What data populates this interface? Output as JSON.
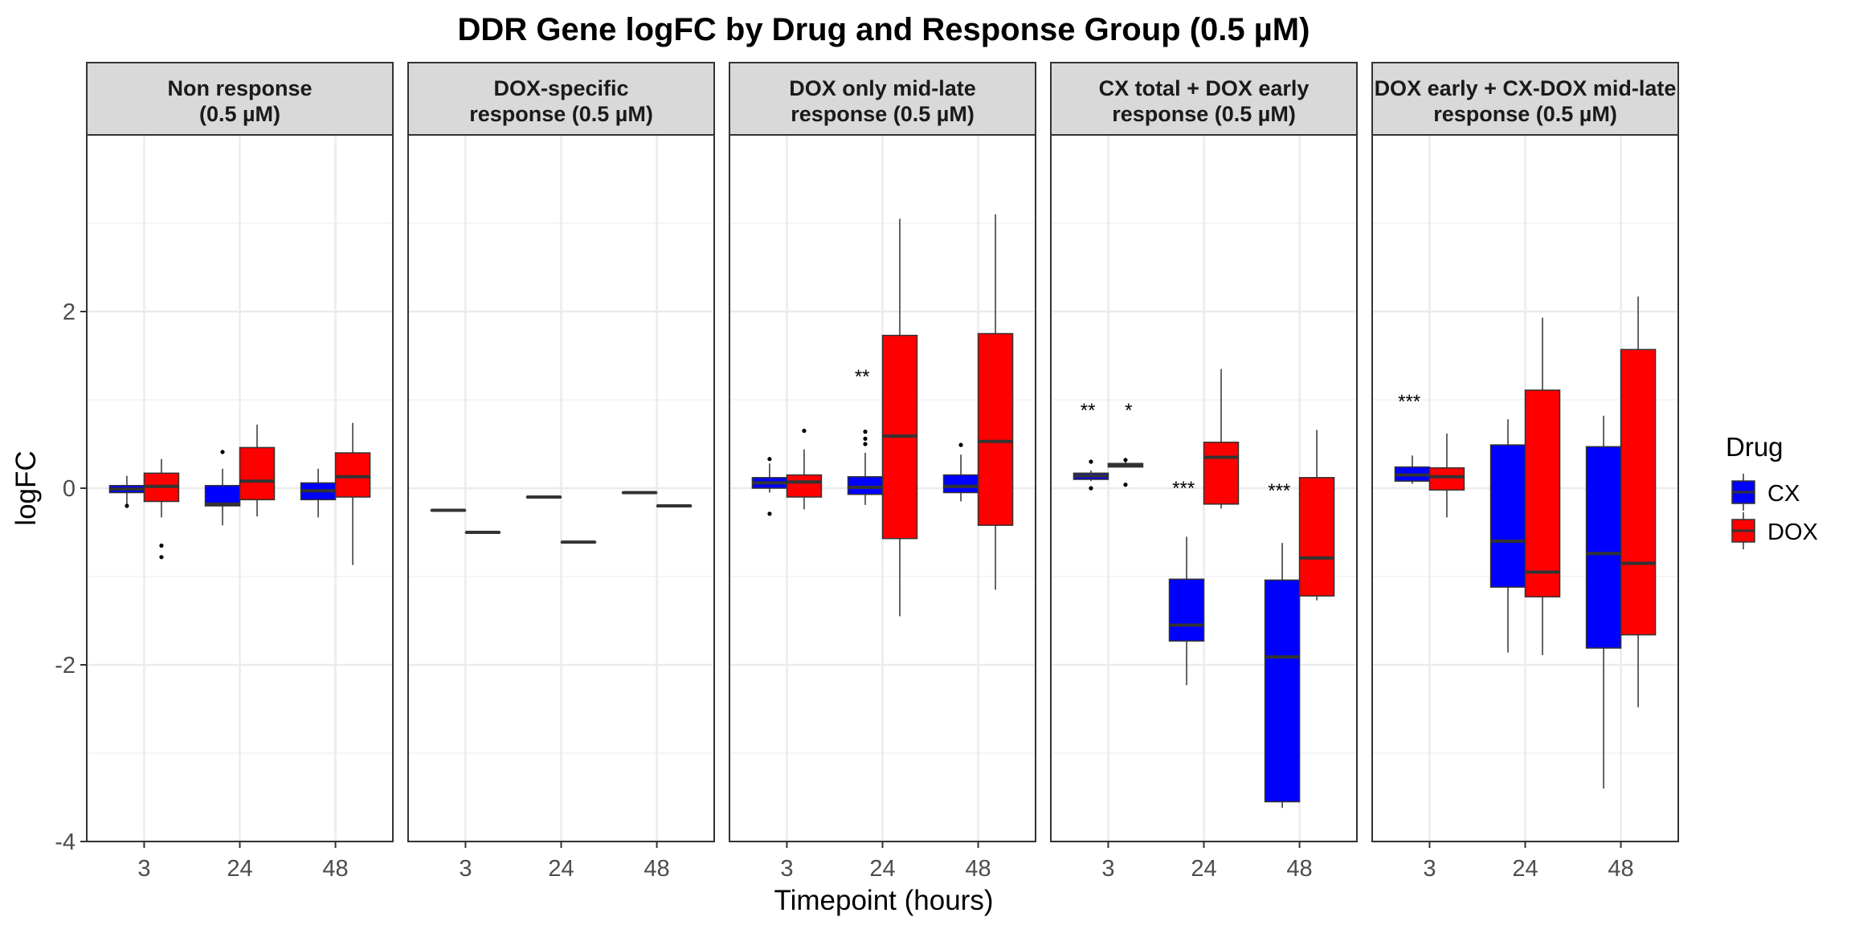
{
  "chart_data": {
    "type": "box",
    "title": "DDR Gene logFC by Drug and Response Group (0.5 µM)",
    "xlabel": "Timepoint (hours)",
    "ylabel": "logFC",
    "ylim": [
      -4,
      4
    ],
    "yticks": [
      "-4",
      "-2",
      "0",
      "2"
    ],
    "categories": [
      "3",
      "24",
      "48"
    ],
    "grid": true,
    "legend": {
      "title": "Drug",
      "position": "right",
      "entries": [
        {
          "name": "CX",
          "color": "#0000FF"
        },
        {
          "name": "DOX",
          "color": "#FF0000"
        }
      ]
    },
    "panels": [
      {
        "strip": [
          "Non response",
          "(0.5 µM)"
        ],
        "boxes": [
          {
            "x": "3",
            "drug": "CX",
            "lower": -0.18,
            "q1": -0.05,
            "median": -0.01,
            "q3": 0.03,
            "upper": 0.14,
            "outliers": [
              -0.2
            ]
          },
          {
            "x": "3",
            "drug": "DOX",
            "lower": -0.33,
            "q1": -0.15,
            "median": 0.02,
            "q3": 0.17,
            "upper": 0.33,
            "outliers": [
              -0.65,
              -0.78
            ]
          },
          {
            "x": "24",
            "drug": "CX",
            "lower": -0.42,
            "q1": -0.2,
            "median": -0.18,
            "q3": 0.03,
            "upper": 0.22,
            "outliers": [
              0.41
            ]
          },
          {
            "x": "24",
            "drug": "DOX",
            "lower": -0.32,
            "q1": -0.13,
            "median": 0.08,
            "q3": 0.46,
            "upper": 0.72,
            "outliers": []
          },
          {
            "x": "48",
            "drug": "CX",
            "lower": -0.33,
            "q1": -0.13,
            "median": -0.03,
            "q3": 0.06,
            "upper": 0.22,
            "outliers": []
          },
          {
            "x": "48",
            "drug": "DOX",
            "lower": -0.87,
            "q1": -0.1,
            "median": 0.13,
            "q3": 0.4,
            "upper": 0.74,
            "outliers": []
          }
        ],
        "annotations": []
      },
      {
        "strip": [
          "DOX-specific",
          "response (0.5 µM)"
        ],
        "boxes": [
          {
            "x": "3",
            "drug": "CX",
            "lower": -0.25,
            "q1": -0.25,
            "median": -0.25,
            "q3": -0.25,
            "upper": -0.25,
            "outliers": []
          },
          {
            "x": "3",
            "drug": "DOX",
            "lower": -0.5,
            "q1": -0.5,
            "median": -0.5,
            "q3": -0.5,
            "upper": -0.5,
            "outliers": []
          },
          {
            "x": "24",
            "drug": "CX",
            "lower": -0.1,
            "q1": -0.1,
            "median": -0.1,
            "q3": -0.1,
            "upper": -0.1,
            "outliers": []
          },
          {
            "x": "24",
            "drug": "DOX",
            "lower": -0.61,
            "q1": -0.61,
            "median": -0.61,
            "q3": -0.61,
            "upper": -0.61,
            "outliers": []
          },
          {
            "x": "48",
            "drug": "CX",
            "lower": -0.05,
            "q1": -0.05,
            "median": -0.05,
            "q3": -0.05,
            "upper": -0.05,
            "outliers": []
          },
          {
            "x": "48",
            "drug": "DOX",
            "lower": -0.2,
            "q1": -0.2,
            "median": -0.2,
            "q3": -0.2,
            "upper": -0.2,
            "outliers": []
          }
        ],
        "annotations": []
      },
      {
        "strip": [
          "DOX only mid-late",
          "response (0.5 µM)"
        ],
        "boxes": [
          {
            "x": "3",
            "drug": "CX",
            "lower": -0.05,
            "q1": 0.0,
            "median": 0.06,
            "q3": 0.12,
            "upper": 0.28,
            "outliers": [
              0.33,
              -0.29
            ]
          },
          {
            "x": "3",
            "drug": "DOX",
            "lower": -0.24,
            "q1": -0.1,
            "median": 0.07,
            "q3": 0.15,
            "upper": 0.44,
            "outliers": [
              0.65
            ]
          },
          {
            "x": "24",
            "drug": "CX",
            "lower": -0.19,
            "q1": -0.07,
            "median": 0.01,
            "q3": 0.13,
            "upper": 0.4,
            "outliers": [
              0.5,
              0.56,
              0.64
            ]
          },
          {
            "x": "24",
            "drug": "DOX",
            "lower": -1.45,
            "q1": -0.57,
            "median": 0.59,
            "q3": 1.73,
            "upper": 3.05,
            "outliers": []
          },
          {
            "x": "48",
            "drug": "CX",
            "lower": -0.15,
            "q1": -0.05,
            "median": 0.02,
            "q3": 0.15,
            "upper": 0.38,
            "outliers": [
              0.49
            ]
          },
          {
            "x": "48",
            "drug": "DOX",
            "lower": -1.15,
            "q1": -0.42,
            "median": 0.53,
            "q3": 1.75,
            "upper": 3.1,
            "outliers": []
          }
        ],
        "annotations": [
          {
            "x": "24",
            "y": 1.28,
            "text": "**"
          }
        ]
      },
      {
        "strip": [
          "CX total + DOX early",
          "response (0.5 µM)"
        ],
        "boxes": [
          {
            "x": "3",
            "drug": "CX",
            "lower": 0.08,
            "q1": 0.1,
            "median": 0.14,
            "q3": 0.17,
            "upper": 0.2,
            "outliers": [
              0.3,
              0.0
            ]
          },
          {
            "x": "3",
            "drug": "DOX",
            "lower": 0.24,
            "q1": 0.24,
            "median": 0.26,
            "q3": 0.28,
            "upper": 0.3,
            "outliers": [
              0.32,
              0.04
            ]
          },
          {
            "x": "24",
            "drug": "CX",
            "lower": -2.23,
            "q1": -1.73,
            "median": -1.55,
            "q3": -1.03,
            "upper": -0.55,
            "outliers": []
          },
          {
            "x": "24",
            "drug": "DOX",
            "lower": -0.23,
            "q1": -0.18,
            "median": 0.35,
            "q3": 0.52,
            "upper": 1.35,
            "outliers": []
          },
          {
            "x": "48",
            "drug": "CX",
            "lower": -3.62,
            "q1": -3.55,
            "median": -1.91,
            "q3": -1.04,
            "upper": -0.62,
            "outliers": []
          },
          {
            "x": "48",
            "drug": "DOX",
            "lower": -1.27,
            "q1": -1.22,
            "median": -0.79,
            "q3": 0.12,
            "upper": 0.66,
            "outliers": []
          }
        ],
        "annotations": [
          {
            "x": "3",
            "offset": -0.25,
            "y": 0.9,
            "text": "**"
          },
          {
            "x": "3",
            "offset": 0.25,
            "y": 0.9,
            "text": "*"
          },
          {
            "x": "24",
            "y": 0.02,
            "text": "***"
          },
          {
            "x": "48",
            "y": -0.01,
            "text": "***"
          }
        ]
      },
      {
        "strip": [
          "DOX early + CX-DOX mid-late",
          "response (0.5 µM)"
        ],
        "boxes": [
          {
            "x": "3",
            "drug": "CX",
            "lower": 0.05,
            "q1": 0.08,
            "median": 0.15,
            "q3": 0.24,
            "upper": 0.37,
            "outliers": []
          },
          {
            "x": "3",
            "drug": "DOX",
            "lower": -0.33,
            "q1": -0.02,
            "median": 0.13,
            "q3": 0.23,
            "upper": 0.62,
            "outliers": []
          },
          {
            "x": "24",
            "drug": "CX",
            "lower": -1.86,
            "q1": -1.12,
            "median": -0.6,
            "q3": 0.49,
            "upper": 0.78,
            "outliers": []
          },
          {
            "x": "24",
            "drug": "DOX",
            "lower": -1.89,
            "q1": -1.23,
            "median": -0.95,
            "q3": 1.11,
            "upper": 1.93,
            "outliers": []
          },
          {
            "x": "48",
            "drug": "CX",
            "lower": -3.4,
            "q1": -1.81,
            "median": -0.74,
            "q3": 0.47,
            "upper": 0.82,
            "outliers": []
          },
          {
            "x": "48",
            "drug": "DOX",
            "lower": -2.48,
            "q1": -1.66,
            "median": -0.85,
            "q3": 1.57,
            "upper": 2.17,
            "outliers": []
          }
        ],
        "annotations": [
          {
            "x": "3",
            "y": 1.0,
            "text": "***"
          }
        ]
      }
    ]
  }
}
